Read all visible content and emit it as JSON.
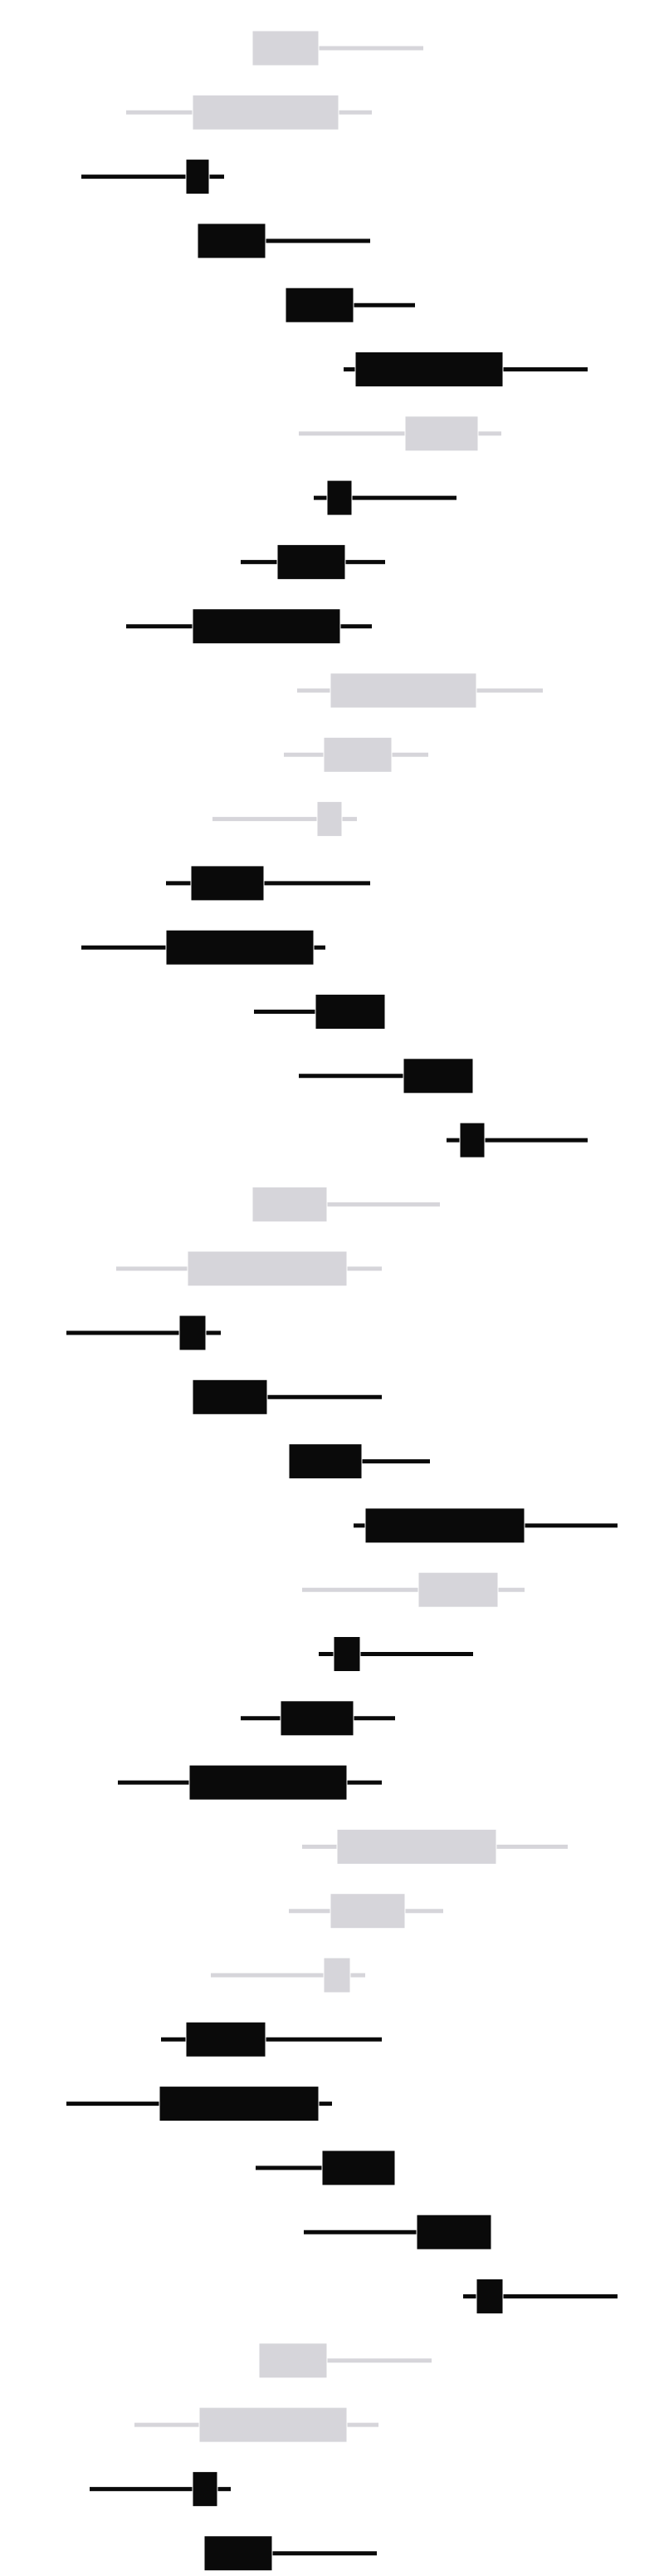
{
  "colors": {
    "background": "#ffffff",
    "dark": "#0a0a0a",
    "light": "#d6d5da"
  },
  "chart_data": [
    {
      "type": "candlestick",
      "title": "",
      "xlabel": "",
      "ylabel": "",
      "grid": false,
      "legend": "none",
      "xlim": [
        0,
        800
      ],
      "series": [
        {
          "open": 384,
          "close": 304,
          "low": 304,
          "high": 510,
          "color": "light"
        },
        {
          "open": 408,
          "close": 232,
          "low": 152,
          "high": 448,
          "color": "light"
        },
        {
          "open": 224,
          "close": 252,
          "low": 98,
          "high": 270,
          "color": "dark"
        },
        {
          "open": 238,
          "close": 320,
          "low": 238,
          "high": 446,
          "color": "dark"
        },
        {
          "open": 344,
          "close": 426,
          "low": 344,
          "high": 500,
          "color": "dark"
        },
        {
          "open": 428,
          "close": 606,
          "low": 414,
          "high": 708,
          "color": "dark"
        },
        {
          "open": 576,
          "close": 488,
          "low": 360,
          "high": 604,
          "color": "light"
        },
        {
          "open": 394,
          "close": 424,
          "low": 378,
          "high": 550,
          "color": "dark"
        },
        {
          "open": 334,
          "close": 416,
          "low": 290,
          "high": 464,
          "color": "dark"
        },
        {
          "open": 232,
          "close": 410,
          "low": 152,
          "high": 448,
          "color": "dark"
        },
        {
          "open": 574,
          "close": 398,
          "low": 358,
          "high": 654,
          "color": "light"
        },
        {
          "open": 472,
          "close": 390,
          "low": 342,
          "high": 516,
          "color": "light"
        },
        {
          "open": 412,
          "close": 382,
          "low": 256,
          "high": 430,
          "color": "light"
        },
        {
          "open": 230,
          "close": 318,
          "low": 200,
          "high": 446,
          "color": "dark"
        },
        {
          "open": 200,
          "close": 378,
          "low": 98,
          "high": 392,
          "color": "dark"
        },
        {
          "open": 380,
          "close": 464,
          "low": 306,
          "high": 464,
          "color": "dark"
        },
        {
          "open": 486,
          "close": 570,
          "low": 360,
          "high": 570,
          "color": "dark"
        },
        {
          "open": 554,
          "close": 584,
          "low": 538,
          "high": 708,
          "color": "dark"
        },
        {
          "open": 394,
          "close": 304,
          "low": 304,
          "high": 530,
          "color": "light"
        },
        {
          "open": 418,
          "close": 226,
          "low": 140,
          "high": 460,
          "color": "light"
        },
        {
          "open": 216,
          "close": 248,
          "low": 80,
          "high": 266,
          "color": "dark"
        },
        {
          "open": 232,
          "close": 322,
          "low": 232,
          "high": 460,
          "color": "dark"
        },
        {
          "open": 348,
          "close": 436,
          "low": 348,
          "high": 518,
          "color": "dark"
        },
        {
          "open": 440,
          "close": 632,
          "low": 426,
          "high": 744,
          "color": "dark"
        },
        {
          "open": 600,
          "close": 504,
          "low": 364,
          "high": 632,
          "color": "light"
        },
        {
          "open": 402,
          "close": 434,
          "low": 384,
          "high": 570,
          "color": "dark"
        },
        {
          "open": 338,
          "close": 426,
          "low": 290,
          "high": 476,
          "color": "dark"
        },
        {
          "open": 228,
          "close": 418,
          "low": 142,
          "high": 460,
          "color": "dark"
        },
        {
          "open": 598,
          "close": 406,
          "low": 364,
          "high": 684,
          "color": "light"
        },
        {
          "open": 488,
          "close": 398,
          "low": 348,
          "high": 534,
          "color": "light"
        },
        {
          "open": 422,
          "close": 390,
          "low": 254,
          "high": 440,
          "color": "light"
        },
        {
          "open": 224,
          "close": 320,
          "low": 194,
          "high": 460,
          "color": "dark"
        },
        {
          "open": 192,
          "close": 384,
          "low": 80,
          "high": 400,
          "color": "dark"
        },
        {
          "open": 388,
          "close": 476,
          "low": 308,
          "high": 476,
          "color": "dark"
        },
        {
          "open": 502,
          "close": 592,
          "low": 366,
          "high": 592,
          "color": "dark"
        },
        {
          "open": 574,
          "close": 606,
          "low": 558,
          "high": 744,
          "color": "dark"
        },
        {
          "open": 394,
          "close": 312,
          "low": 312,
          "high": 520,
          "color": "light"
        },
        {
          "open": 418,
          "close": 240,
          "low": 162,
          "high": 456,
          "color": "light"
        },
        {
          "open": 232,
          "close": 262,
          "low": 108,
          "high": 278,
          "color": "dark"
        },
        {
          "open": 246,
          "close": 328,
          "low": 246,
          "high": 454,
          "color": "dark"
        }
      ]
    }
  ]
}
